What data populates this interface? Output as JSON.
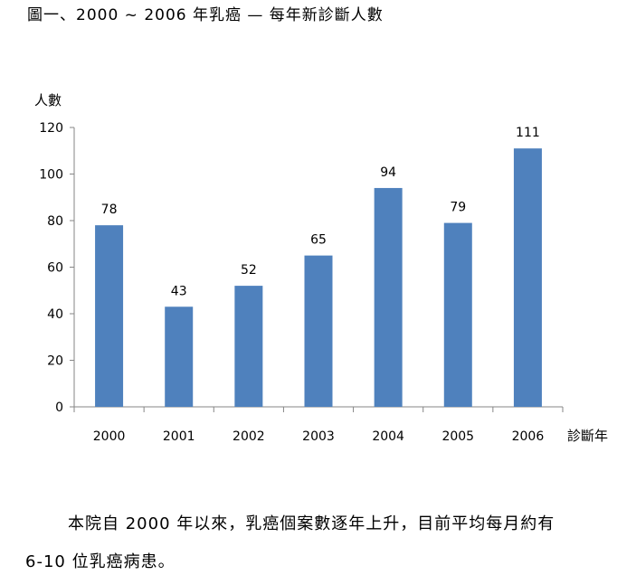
{
  "figure_title": "圖一、2000 ~ 2006 年乳癌 — 每年新診斷人數",
  "colors": {
    "bar": "#4F81BD",
    "axis": "#868686",
    "text": "#000000"
  },
  "chart_data": {
    "type": "bar",
    "title": "",
    "xlabel": "診斷年",
    "ylabel": "人數",
    "categories": [
      "2000",
      "2001",
      "2002",
      "2003",
      "2004",
      "2005",
      "2006"
    ],
    "values": [
      78,
      43,
      52,
      65,
      94,
      79,
      111
    ],
    "data_labels": [
      "78",
      "43",
      "52",
      "65",
      "94",
      "79",
      "111"
    ],
    "ylim": [
      0,
      120
    ],
    "yticks": [
      0,
      20,
      40,
      60,
      80,
      100,
      120
    ],
    "grid": false,
    "legend": "none"
  },
  "paragraph": {
    "line1": "本院自 2000 年以來，乳癌個案數逐年上升，目前平均每月約有",
    "line2": "6-10 位乳癌病患。"
  }
}
